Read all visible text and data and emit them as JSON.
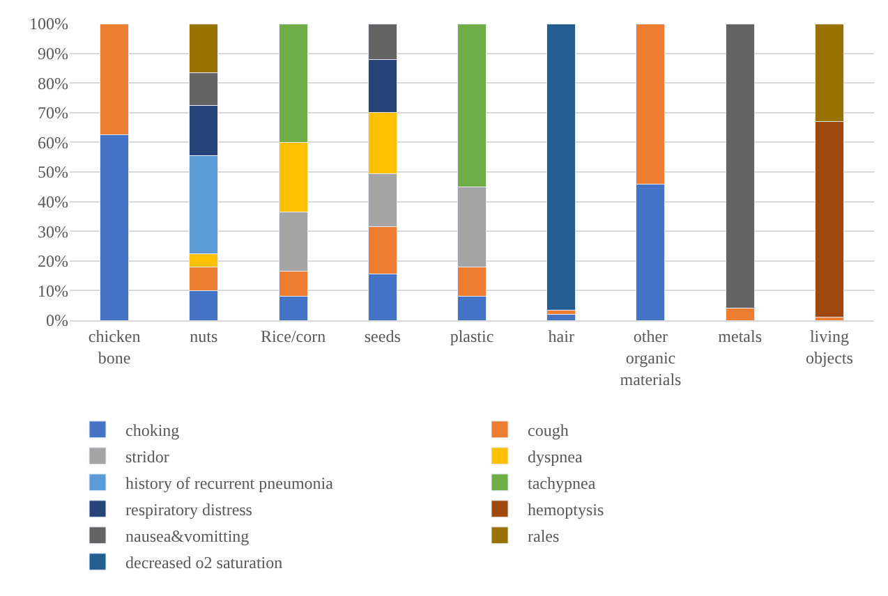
{
  "chart_data": {
    "type": "bar",
    "stacked": true,
    "categories": [
      "chicken bone",
      "nuts",
      "Rice/corn",
      "seeds",
      "plastic",
      "hair",
      "other organic materials",
      "metals",
      "living objects"
    ],
    "series": [
      {
        "name": "choking",
        "color": "#4472c4",
        "values": [
          62.5,
          10,
          8,
          15.5,
          8,
          2,
          46,
          null,
          null
        ]
      },
      {
        "name": "cough",
        "color": "#ed7d31",
        "values": [
          37.5,
          8,
          8.5,
          16,
          10,
          1.5,
          54,
          4,
          1
        ]
      },
      {
        "name": "stridor",
        "color": "#a5a5a5",
        "values": [
          null,
          null,
          20,
          18,
          27,
          null,
          null,
          null,
          null
        ]
      },
      {
        "name": "dyspnea",
        "color": "#ffc000",
        "values": [
          null,
          4.5,
          23.5,
          20.5,
          null,
          null,
          null,
          null,
          null
        ]
      },
      {
        "name": "history of recurrent pneumonia",
        "color": "#5b9bd5",
        "values": [
          null,
          33,
          null,
          null,
          null,
          null,
          null,
          null,
          null
        ]
      },
      {
        "name": "tachypnea",
        "color": "#70ad47",
        "values": [
          null,
          null,
          40,
          null,
          55,
          null,
          null,
          null,
          null
        ]
      },
      {
        "name": "respiratory distress",
        "color": "#264478",
        "values": [
          null,
          17,
          null,
          18,
          null,
          null,
          null,
          null,
          null
        ]
      },
      {
        "name": "hemoptysis",
        "color": "#9e480e",
        "values": [
          null,
          null,
          null,
          null,
          null,
          null,
          null,
          null,
          66
        ]
      },
      {
        "name": "nausea&vomitting",
        "color": "#636363",
        "values": [
          null,
          11,
          null,
          12,
          null,
          null,
          null,
          96,
          null
        ]
      },
      {
        "name": "rales",
        "color": "#997300",
        "values": [
          null,
          16.5,
          null,
          null,
          null,
          null,
          null,
          null,
          33
        ]
      },
      {
        "name": "decreased o2 saturation",
        "color": "#255e91",
        "values": [
          null,
          null,
          null,
          null,
          null,
          96.5,
          null,
          null,
          null
        ]
      }
    ],
    "ylim": [
      0,
      100
    ],
    "yticks": [
      {
        "value": 0,
        "label": "0%"
      },
      {
        "value": 10,
        "label": "10%"
      },
      {
        "value": 20,
        "label": "20%"
      },
      {
        "value": 30,
        "label": "30%"
      },
      {
        "value": 40,
        "label": "40%"
      },
      {
        "value": 50,
        "label": "50%"
      },
      {
        "value": 60,
        "label": "60%"
      },
      {
        "value": 70,
        "label": "70%"
      },
      {
        "value": 80,
        "label": "80%"
      },
      {
        "value": 90,
        "label": "90%"
      },
      {
        "value": 100,
        "label": "100%"
      }
    ],
    "grid": "y",
    "legend": "bottom"
  }
}
